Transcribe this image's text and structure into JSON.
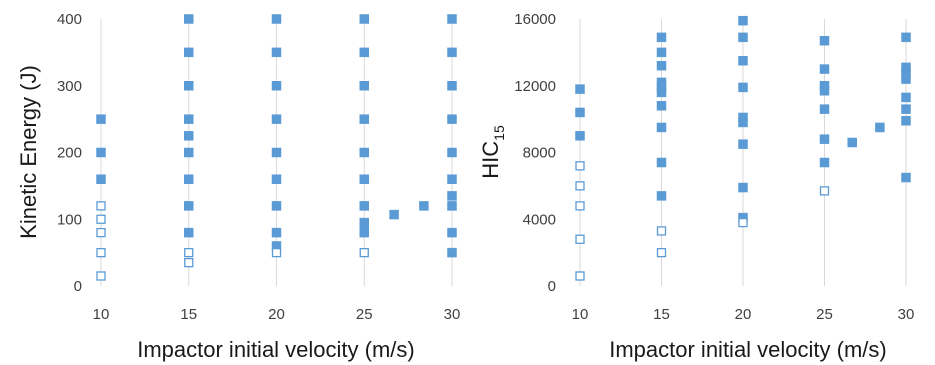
{
  "chart_data": [
    {
      "type": "scatter",
      "ylabel": "Kinetic Energy (J)",
      "xlabel": "Impactor initial velocity (m/s)",
      "xlim": [
        10,
        30
      ],
      "ylim": [
        0,
        400
      ],
      "xticks": [
        "10",
        "15",
        "20",
        "25",
        "30"
      ],
      "yticks": [
        "0",
        "100",
        "200",
        "300",
        "400"
      ],
      "grid": "vertical",
      "marker_color": "#5b9bd5",
      "series": [
        {
          "marker": "filled-square",
          "points": [
            [
              10,
              250
            ],
            [
              10,
              200
            ],
            [
              10,
              160
            ],
            [
              15,
              400
            ],
            [
              15,
              350
            ],
            [
              15,
              300
            ],
            [
              15,
              250
            ],
            [
              15,
              225
            ],
            [
              15,
              200
            ],
            [
              15,
              160
            ],
            [
              15,
              120
            ],
            [
              15,
              80
            ],
            [
              20,
              400
            ],
            [
              20,
              350
            ],
            [
              20,
              300
            ],
            [
              20,
              250
            ],
            [
              20,
              200
            ],
            [
              20,
              160
            ],
            [
              20,
              120
            ],
            [
              20,
              80
            ],
            [
              20,
              60
            ],
            [
              25,
              400
            ],
            [
              25,
              350
            ],
            [
              25,
              300
            ],
            [
              25,
              250
            ],
            [
              25,
              200
            ],
            [
              25,
              160
            ],
            [
              25,
              120
            ],
            [
              25,
              95
            ],
            [
              25,
              88
            ],
            [
              25,
              80
            ],
            [
              26.7,
              107
            ],
            [
              28.4,
              120
            ],
            [
              30,
              400
            ],
            [
              30,
              350
            ],
            [
              30,
              300
            ],
            [
              30,
              250
            ],
            [
              30,
              200
            ],
            [
              30,
              160
            ],
            [
              30,
              135
            ],
            [
              30,
              120
            ],
            [
              30,
              80
            ],
            [
              30,
              50
            ]
          ]
        },
        {
          "marker": "hollow-square",
          "points": [
            [
              10,
              120
            ],
            [
              10,
              100
            ],
            [
              10,
              80
            ],
            [
              10,
              50
            ],
            [
              10,
              15
            ],
            [
              15,
              50
            ],
            [
              15,
              35
            ],
            [
              20,
              50
            ],
            [
              25,
              50
            ]
          ]
        }
      ]
    },
    {
      "type": "scatter",
      "ylabel": "HIC",
      "ylabel_sub": "15",
      "xlabel": "Impactor initial velocity (m/s)",
      "xlim": [
        10,
        30
      ],
      "ylim": [
        0,
        16000
      ],
      "xticks": [
        "10",
        "15",
        "20",
        "25",
        "30"
      ],
      "yticks": [
        "0",
        "4000",
        "8000",
        "12000",
        "16000"
      ],
      "grid": "vertical",
      "marker_color": "#5b9bd5",
      "series": [
        {
          "marker": "filled-square",
          "points": [
            [
              10,
              11800
            ],
            [
              10,
              10400
            ],
            [
              10,
              9000
            ],
            [
              15,
              14900
            ],
            [
              15,
              14000
            ],
            [
              15,
              13200
            ],
            [
              15,
              12200
            ],
            [
              15,
              11900
            ],
            [
              15,
              11600
            ],
            [
              15,
              10800
            ],
            [
              15,
              9500
            ],
            [
              15,
              7400
            ],
            [
              15,
              5400
            ],
            [
              20,
              15900
            ],
            [
              20,
              14900
            ],
            [
              20,
              13500
            ],
            [
              20,
              11900
            ],
            [
              20,
              10100
            ],
            [
              20,
              9800
            ],
            [
              20,
              8500
            ],
            [
              20,
              5900
            ],
            [
              20,
              4100
            ],
            [
              25,
              14700
            ],
            [
              25,
              13000
            ],
            [
              25,
              12000
            ],
            [
              25,
              11700
            ],
            [
              25,
              10600
            ],
            [
              25,
              8800
            ],
            [
              25,
              7400
            ],
            [
              26.7,
              8600
            ],
            [
              28.4,
              9500
            ],
            [
              30,
              14900
            ],
            [
              30,
              13100
            ],
            [
              30,
              12800
            ],
            [
              30,
              12400
            ],
            [
              30,
              11300
            ],
            [
              30,
              10600
            ],
            [
              30,
              9900
            ],
            [
              30,
              6500
            ]
          ]
        },
        {
          "marker": "hollow-square",
          "points": [
            [
              10,
              7200
            ],
            [
              10,
              6000
            ],
            [
              10,
              4800
            ],
            [
              10,
              2800
            ],
            [
              10,
              600
            ],
            [
              15,
              3300
            ],
            [
              15,
              2000
            ],
            [
              20,
              3800
            ],
            [
              25,
              5700
            ]
          ]
        }
      ]
    }
  ]
}
